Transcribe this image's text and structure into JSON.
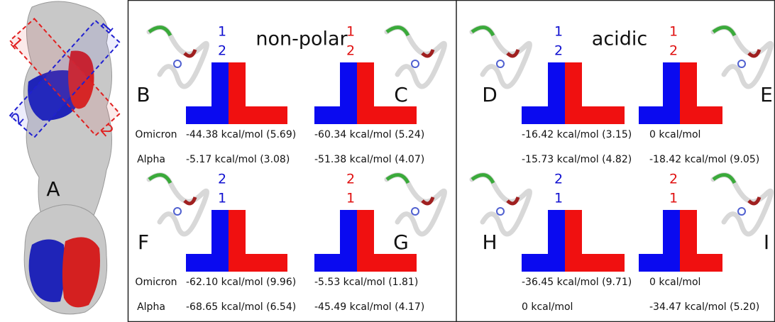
{
  "figure": {
    "left": {
      "label": "A",
      "box_labels": [
        "1",
        "1",
        "2",
        "2"
      ]
    },
    "section_titles": [
      "non-polar",
      "acidic"
    ],
    "rows": [
      {
        "row_labels": [
          "Omicron",
          "Alpha"
        ],
        "panels": [
          {
            "letter": "B",
            "numbers": [
              "1",
              "2"
            ],
            "energies": [
              "-44.38 kcal/mol (5.69)",
              "-5.17 kcal/mol (3.08)"
            ]
          },
          {
            "letter": "C",
            "numbers": [
              "1",
              "2"
            ],
            "energies": [
              "-60.34 kcal/mol (5.24)",
              "-51.38 kcal/mol (4.07)"
            ]
          },
          {
            "letter": "D",
            "numbers": [
              "1",
              "2"
            ],
            "energies": [
              "-16.42 kcal/mol (3.15)",
              "-15.73 kcal/mol (4.82)"
            ]
          },
          {
            "letter": "E",
            "numbers": [
              "1",
              "2"
            ],
            "energies": [
              "0 kcal/mol",
              "-18.42 kcal/mol (9.05)"
            ]
          }
        ]
      },
      {
        "row_labels": [
          "Omicron",
          "Alpha"
        ],
        "panels": [
          {
            "letter": "F",
            "numbers": [
              "2",
              "1"
            ],
            "energies": [
              "-62.10 kcal/mol (9.96)",
              "-68.65 kcal/mol (6.54)"
            ]
          },
          {
            "letter": "G",
            "numbers": [
              "2",
              "1"
            ],
            "energies": [
              "-5.53 kcal/mol (1.81)",
              "-45.49 kcal/mol (4.17)"
            ]
          },
          {
            "letter": "H",
            "numbers": [
              "2",
              "1"
            ],
            "energies": [
              "-36.45 kcal/mol (9.71)",
              "0 kcal/mol"
            ]
          },
          {
            "letter": "I",
            "numbers": [
              "2",
              "1"
            ],
            "energies": [
              "0 kcal/mol",
              "-34.47 kcal/mol (5.20)"
            ]
          }
        ]
      }
    ]
  }
}
